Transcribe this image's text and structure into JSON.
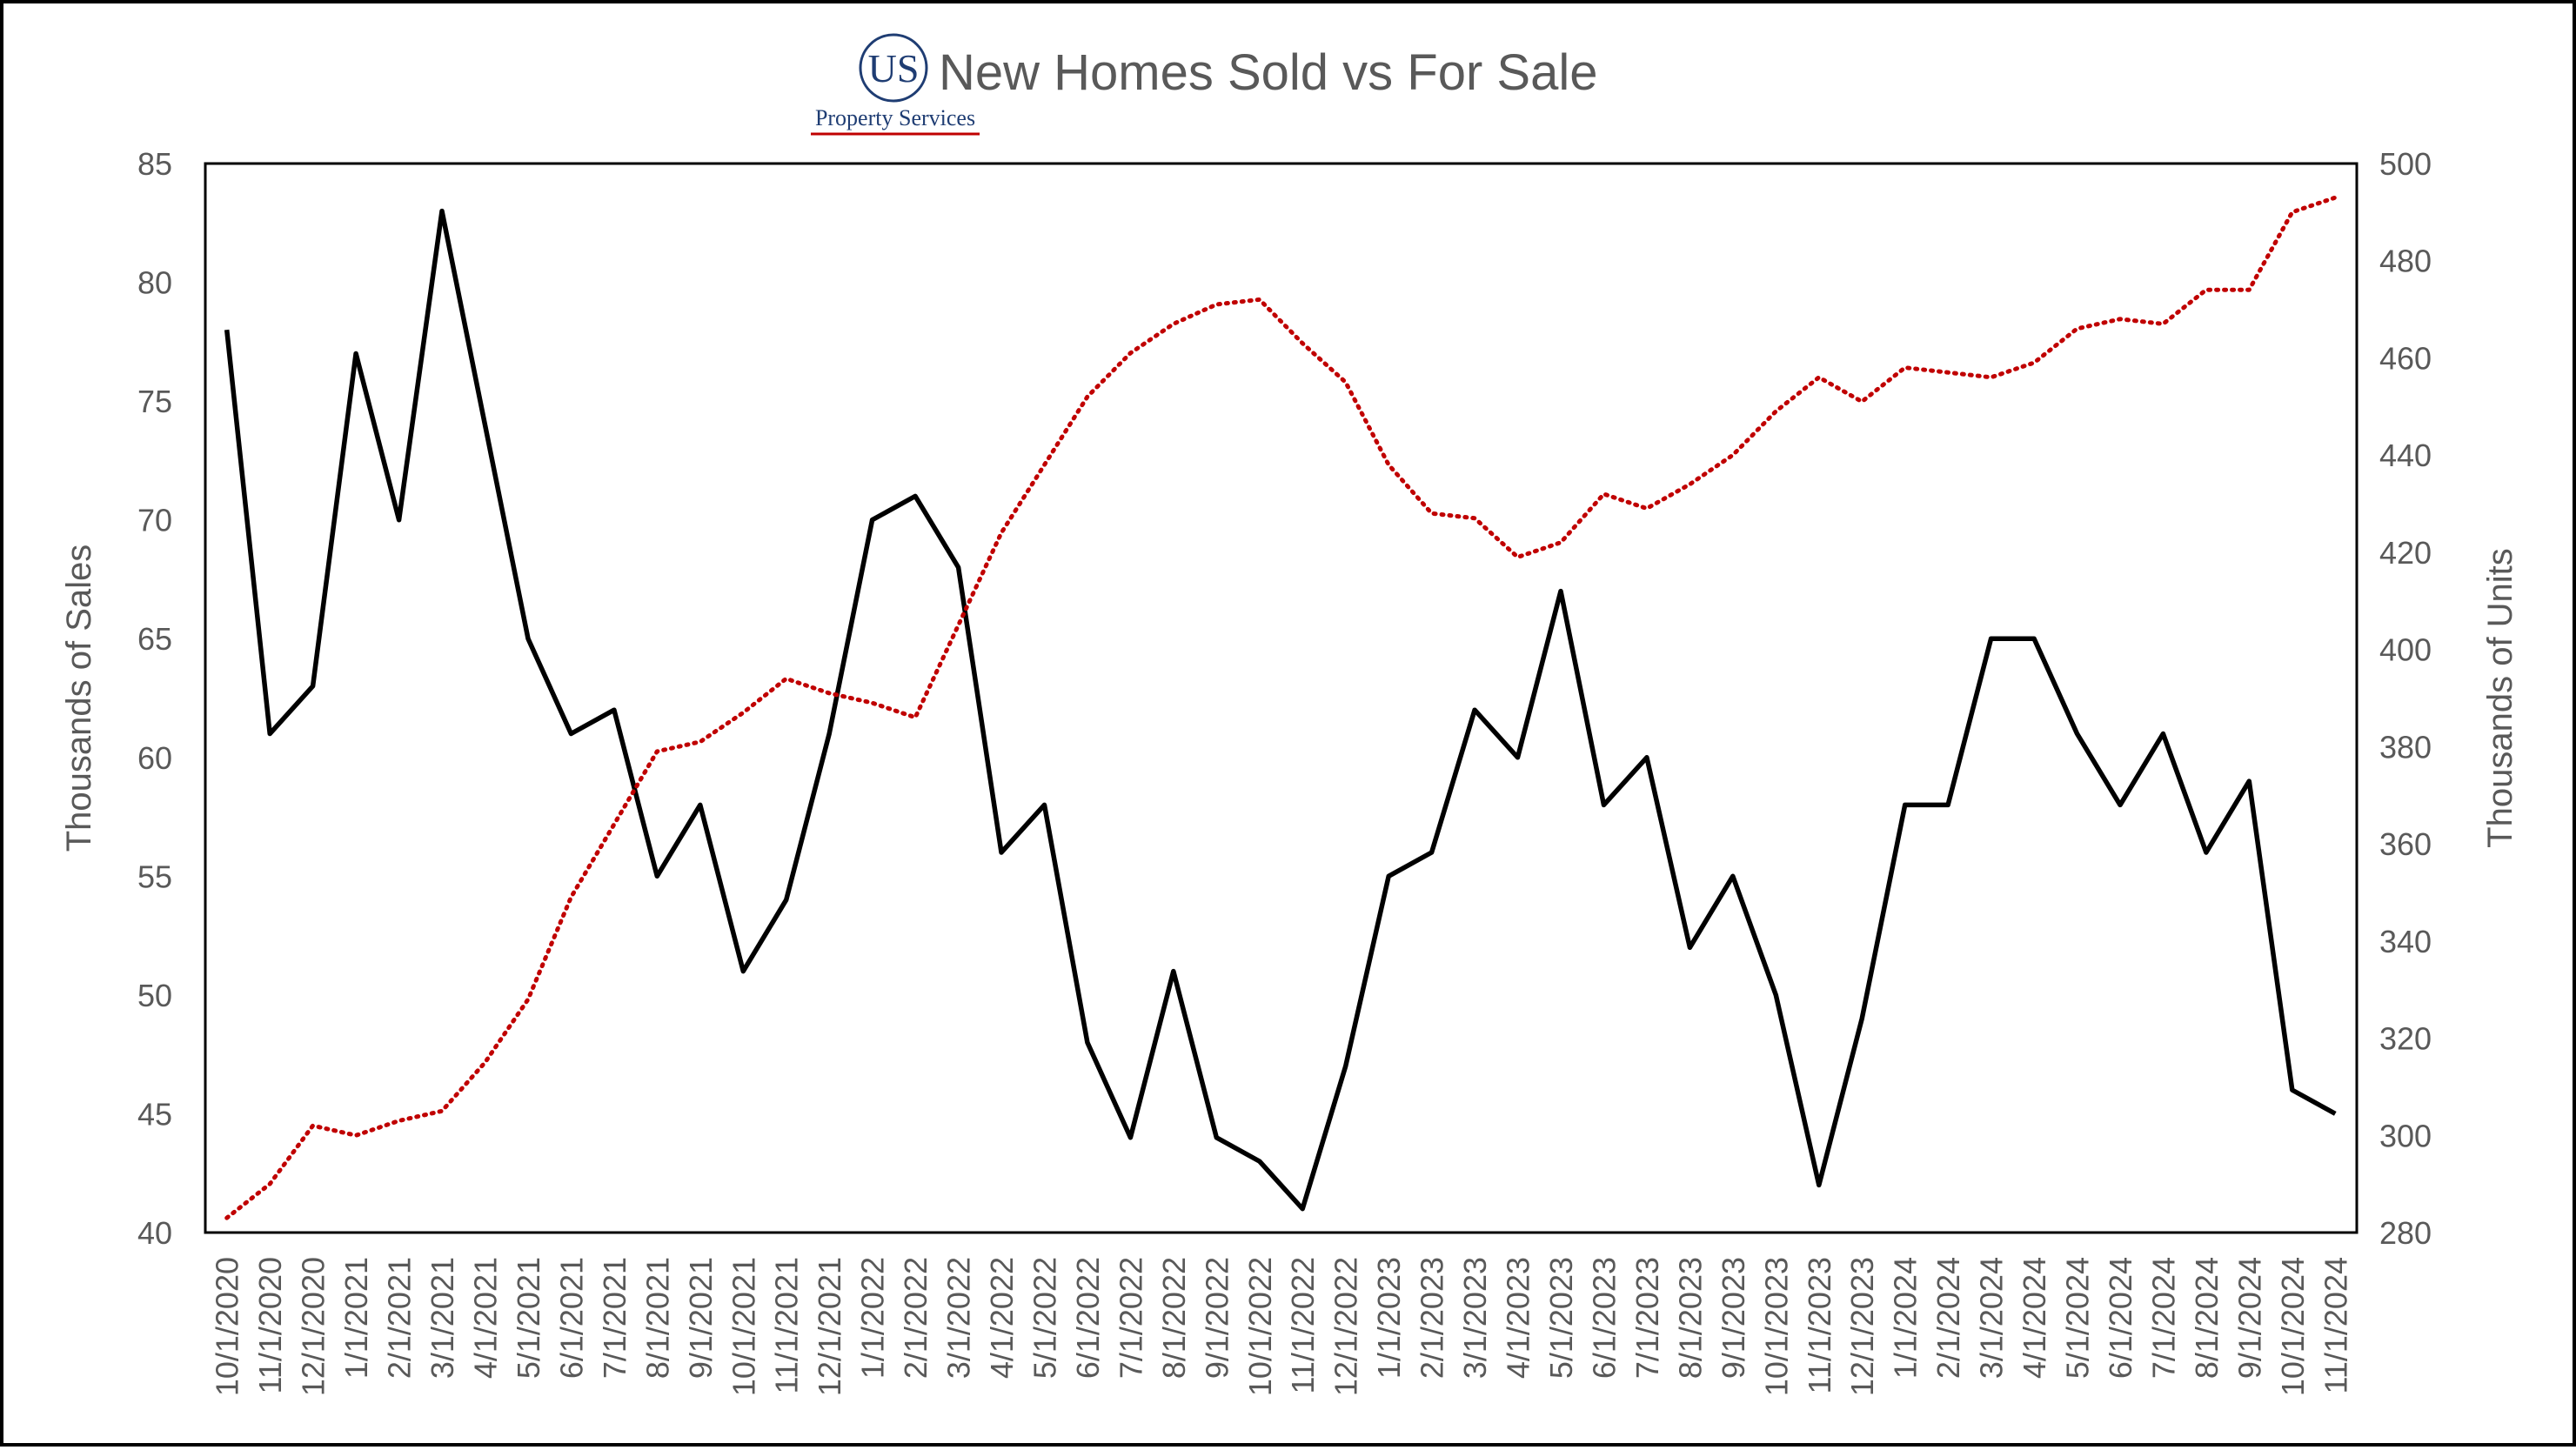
{
  "logo": {
    "mark": "US",
    "subtitle": "Property Services",
    "accent_color": "#c00000",
    "mark_color": "#1f3d73"
  },
  "chart_data": {
    "type": "line",
    "title": "New Homes Sold vs For Sale",
    "y_left_label": "Thousands of Sales",
    "y_right_label": "Thousands of Units",
    "y_left_lim": [
      40,
      85
    ],
    "y_left_ticks": [
      40,
      45,
      50,
      55,
      60,
      65,
      70,
      75,
      80,
      85
    ],
    "y_right_lim": [
      280,
      500
    ],
    "y_right_ticks": [
      280,
      300,
      320,
      340,
      360,
      380,
      400,
      420,
      440,
      460,
      480,
      500
    ],
    "grid": false,
    "legend": "none",
    "categories": [
      "10/1/2020",
      "11/1/2020",
      "12/1/2020",
      "1/1/2021",
      "2/1/2021",
      "3/1/2021",
      "4/1/2021",
      "5/1/2021",
      "6/1/2021",
      "7/1/2021",
      "8/1/2021",
      "9/1/2021",
      "10/1/2021",
      "11/1/2021",
      "12/1/2021",
      "1/1/2022",
      "2/1/2022",
      "3/1/2022",
      "4/1/2022",
      "5/1/2022",
      "6/1/2022",
      "7/1/2022",
      "8/1/2022",
      "9/1/2022",
      "10/1/2022",
      "11/1/2022",
      "12/1/2022",
      "1/1/2023",
      "2/1/2023",
      "3/1/2023",
      "4/1/2023",
      "5/1/2023",
      "6/1/2023",
      "7/1/2023",
      "8/1/2023",
      "9/1/2023",
      "10/1/2023",
      "11/1/2023",
      "12/1/2023",
      "1/1/2024",
      "2/1/2024",
      "3/1/2024",
      "4/1/2024",
      "5/1/2024",
      "6/1/2024",
      "7/1/2024",
      "8/1/2024",
      "9/1/2024",
      "10/1/2024",
      "11/1/2024"
    ],
    "series": [
      {
        "axis": "left",
        "color": "#000000",
        "style": "solid",
        "values": [
          78,
          61,
          63,
          77,
          70,
          83,
          74,
          65,
          61,
          62,
          55,
          58,
          51,
          54,
          61,
          70,
          71,
          68,
          56,
          58,
          48,
          44,
          51,
          44,
          43,
          41,
          47,
          55,
          56,
          62,
          60,
          67,
          58,
          60,
          52,
          55,
          50,
          42,
          49,
          58,
          58,
          65,
          65,
          61,
          58,
          61,
          56,
          59,
          46,
          45
        ]
      },
      {
        "axis": "right",
        "color": "#c00000",
        "style": "dotted",
        "values": [
          283,
          290,
          302,
          300,
          303,
          305,
          315,
          328,
          349,
          364,
          379,
          381,
          387,
          394,
          391,
          389,
          386,
          405,
          424,
          438,
          452,
          461,
          467,
          471,
          472,
          463,
          455,
          438,
          428,
          427,
          419,
          422,
          432,
          429,
          434,
          440,
          449,
          456,
          451,
          458,
          457,
          456,
          459,
          466,
          468,
          467,
          474,
          474,
          490,
          493
        ]
      }
    ]
  }
}
